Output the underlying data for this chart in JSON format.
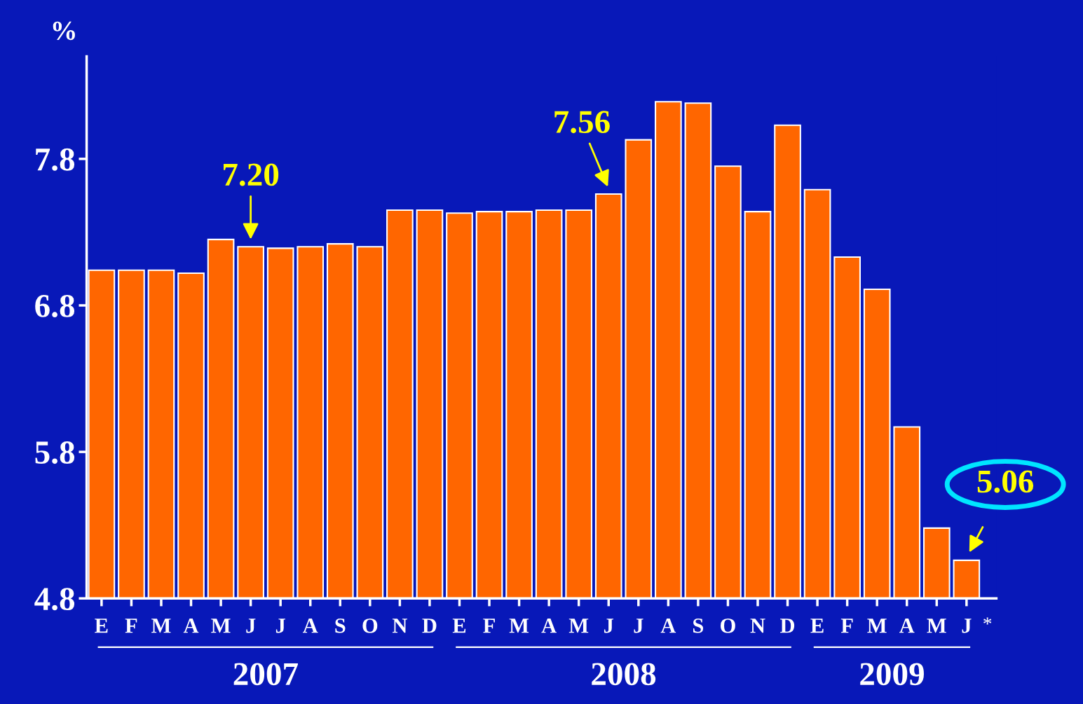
{
  "chart_data": {
    "type": "bar",
    "ylabel": "%",
    "categories": [
      "E",
      "F",
      "M",
      "A",
      "M",
      "J",
      "J",
      "A",
      "S",
      "O",
      "N",
      "D",
      "E",
      "F",
      "M",
      "A",
      "M",
      "J",
      "J",
      "A",
      "S",
      "O",
      "N",
      "D",
      "E",
      "F",
      "M",
      "A",
      "M",
      "J"
    ],
    "values": [
      7.04,
      7.04,
      7.04,
      7.02,
      7.25,
      7.2,
      7.19,
      7.2,
      7.22,
      7.2,
      7.45,
      7.45,
      7.43,
      7.44,
      7.44,
      7.45,
      7.45,
      7.56,
      7.93,
      8.19,
      8.18,
      7.75,
      7.44,
      8.03,
      7.59,
      7.13,
      6.91,
      5.97,
      5.28,
      5.06
    ],
    "value_labels": [
      null,
      null,
      null,
      null,
      null,
      "7.20",
      null,
      null,
      null,
      null,
      null,
      null,
      null,
      null,
      null,
      null,
      null,
      "7.56",
      null,
      null,
      null,
      null,
      null,
      null,
      null,
      null,
      null,
      null,
      null,
      "5.06"
    ],
    "color": "#ff6600",
    "ylim": [
      4.8,
      8.5
    ],
    "yticks": [
      4.8,
      5.8,
      6.8,
      7.8
    ],
    "grid": false,
    "annotations": [
      "2007",
      "2008",
      "2009",
      "*"
    ]
  }
}
